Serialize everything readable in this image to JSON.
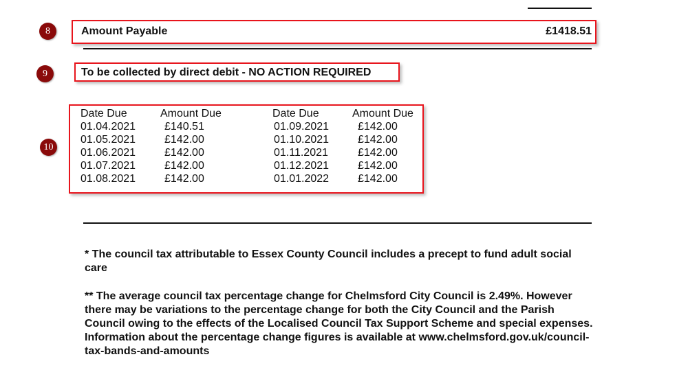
{
  "annotations": {
    "badge_8": "8",
    "badge_9": "9",
    "badge_10": "10",
    "accent_color": "#e8141c",
    "badge_color": "#8a0a0a"
  },
  "amount_payable": {
    "label": "Amount Payable",
    "value": "£1418.51"
  },
  "collection_note": "To be collected by direct debit - NO ACTION REQUIRED",
  "schedule": {
    "headers": [
      "Date Due",
      "Amount Due",
      "Date Due",
      "Amount Due"
    ],
    "left": [
      {
        "date": "01.04.2021",
        "amount": "£140.51"
      },
      {
        "date": "01.05.2021",
        "amount": "£142.00"
      },
      {
        "date": "01.06.2021",
        "amount": "£142.00"
      },
      {
        "date": "01.07.2021",
        "amount": "£142.00"
      },
      {
        "date": "01.08.2021",
        "amount": "£142.00"
      }
    ],
    "right": [
      {
        "date": "01.09.2021",
        "amount": "£142.00"
      },
      {
        "date": "01.10.2021",
        "amount": "£142.00"
      },
      {
        "date": "01.11.2021",
        "amount": "£142.00"
      },
      {
        "date": "01.12.2021",
        "amount": "£142.00"
      },
      {
        "date": "01.01.2022",
        "amount": "£142.00"
      }
    ]
  },
  "footnotes": [
    "* The council tax attributable to Essex County Council includes a precept to fund adult social care",
    "** The average council tax percentage change for Chelmsford City Council is 2.49%. However there may be variations to the percentage change for both the City Council and the Parish Council owing to the effects of the Localised Council Tax Support Scheme and special expenses. Information about the percentage change figures is available at www.chelmsford.gov.uk/council-tax-bands-and-amounts"
  ]
}
